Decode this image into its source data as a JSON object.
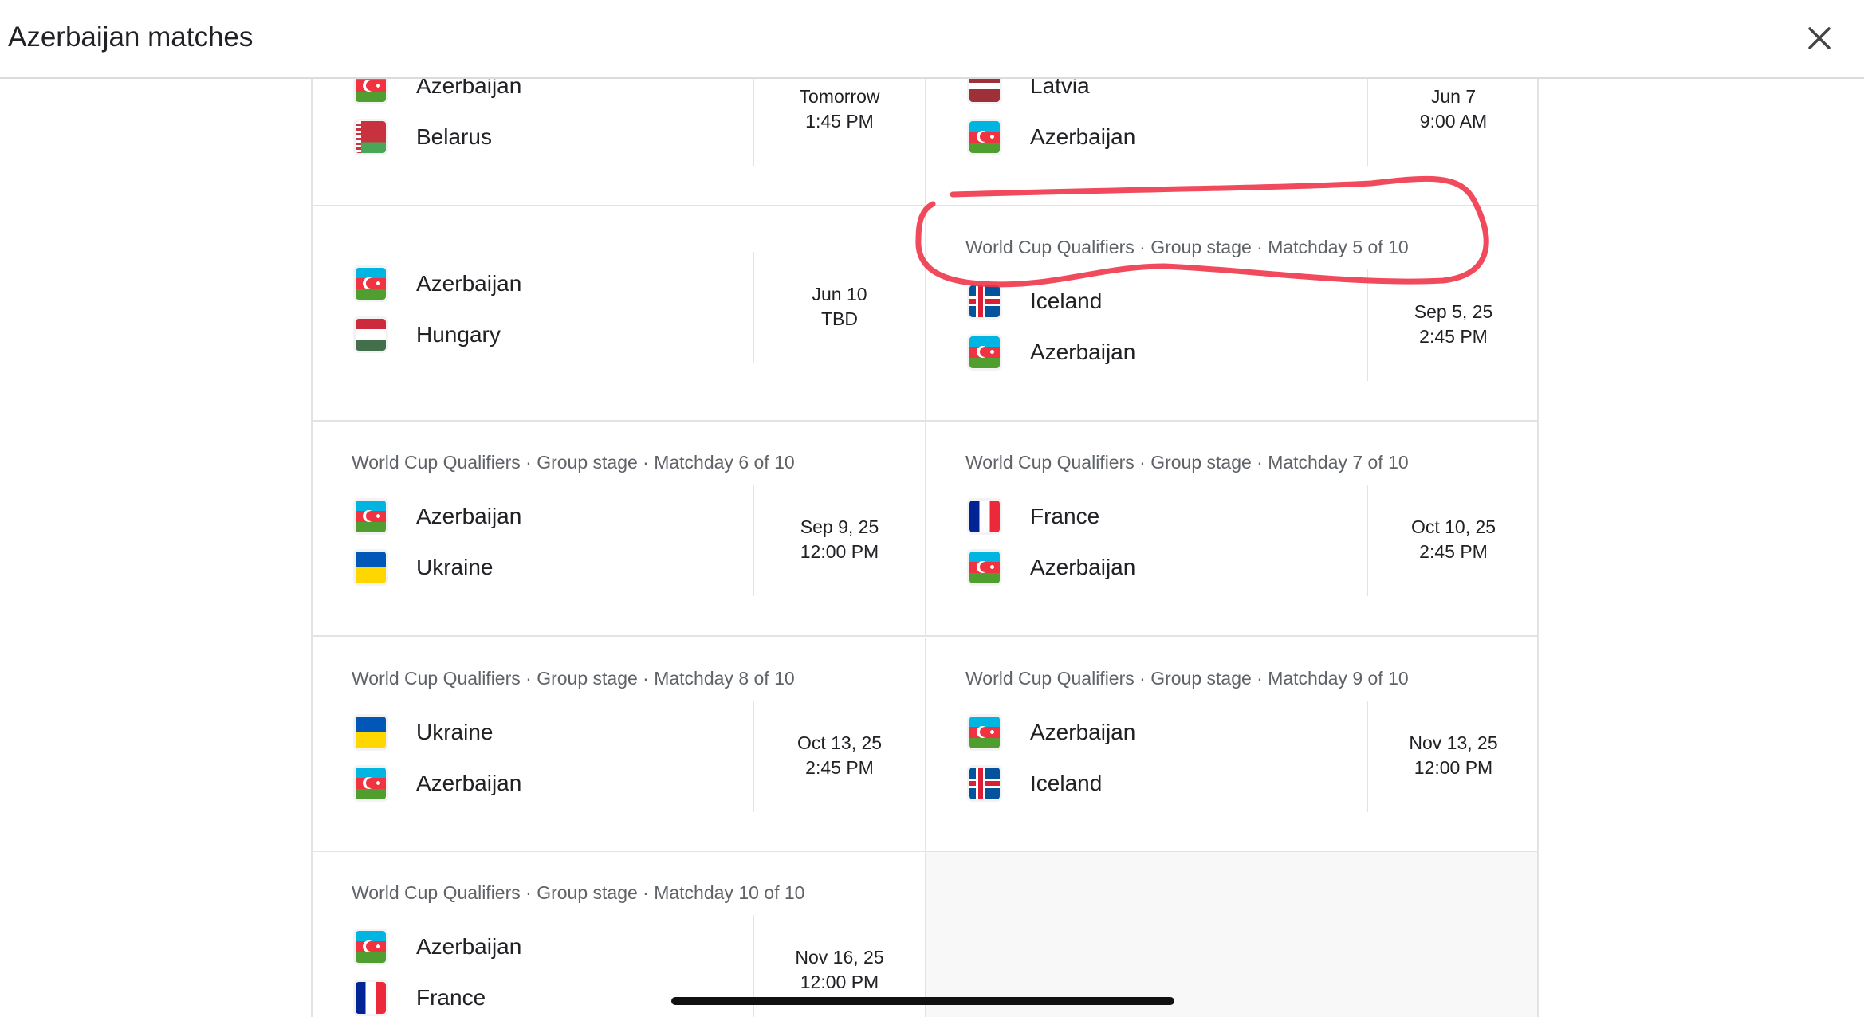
{
  "header": {
    "title": "Azerbaijan matches",
    "close_icon": "close-icon"
  },
  "colors": {
    "annotation": "#f0364a",
    "divider": "#e3e3e3",
    "label_text": "#5f6368"
  },
  "rows": [
    {
      "left": {
        "label": "",
        "teams": [
          {
            "name": "Azerbaijan",
            "flag": "aze"
          },
          {
            "name": "Belarus",
            "flag": "blr"
          }
        ],
        "date": "Tomorrow",
        "time": "1:45 PM"
      },
      "right": {
        "label": "",
        "teams": [
          {
            "name": "Latvia",
            "flag": "lva"
          },
          {
            "name": "Azerbaijan",
            "flag": "aze"
          }
        ],
        "date": "Jun 7",
        "time": "9:00 AM"
      }
    },
    {
      "left": {
        "label": "",
        "centered": true,
        "teams": [
          {
            "name": "Azerbaijan",
            "flag": "aze"
          },
          {
            "name": "Hungary",
            "flag": "hun"
          }
        ],
        "date": "Jun 10",
        "time": "TBD"
      },
      "right": {
        "label": "World Cup Qualifiers · Group stage · Matchday 5 of 10",
        "teams": [
          {
            "name": "Iceland",
            "flag": "isl"
          },
          {
            "name": "Azerbaijan",
            "flag": "aze"
          }
        ],
        "date": "Sep 5, 25",
        "time": "2:45 PM",
        "annotated": true
      }
    },
    {
      "left": {
        "label": "World Cup Qualifiers · Group stage · Matchday 6 of 10",
        "teams": [
          {
            "name": "Azerbaijan",
            "flag": "aze"
          },
          {
            "name": "Ukraine",
            "flag": "ukr"
          }
        ],
        "date": "Sep 9, 25",
        "time": "12:00 PM"
      },
      "right": {
        "label": "World Cup Qualifiers · Group stage · Matchday 7 of 10",
        "teams": [
          {
            "name": "France",
            "flag": "fra"
          },
          {
            "name": "Azerbaijan",
            "flag": "aze"
          }
        ],
        "date": "Oct 10, 25",
        "time": "2:45 PM"
      }
    },
    {
      "left": {
        "label": "World Cup Qualifiers · Group stage · Matchday 8 of 10",
        "teams": [
          {
            "name": "Ukraine",
            "flag": "ukr"
          },
          {
            "name": "Azerbaijan",
            "flag": "aze"
          }
        ],
        "date": "Oct 13, 25",
        "time": "2:45 PM"
      },
      "right": {
        "label": "World Cup Qualifiers · Group stage · Matchday 9 of 10",
        "teams": [
          {
            "name": "Azerbaijan",
            "flag": "aze"
          },
          {
            "name": "Iceland",
            "flag": "isl"
          }
        ],
        "date": "Nov 13, 25",
        "time": "12:00 PM"
      }
    },
    {
      "left": {
        "label": "World Cup Qualifiers · Group stage · Matchday 10 of 10",
        "teams": [
          {
            "name": "Azerbaijan",
            "flag": "aze"
          },
          {
            "name": "France",
            "flag": "fra"
          }
        ],
        "date": "Nov 16, 25",
        "time": "12:00 PM"
      },
      "right": null
    }
  ]
}
